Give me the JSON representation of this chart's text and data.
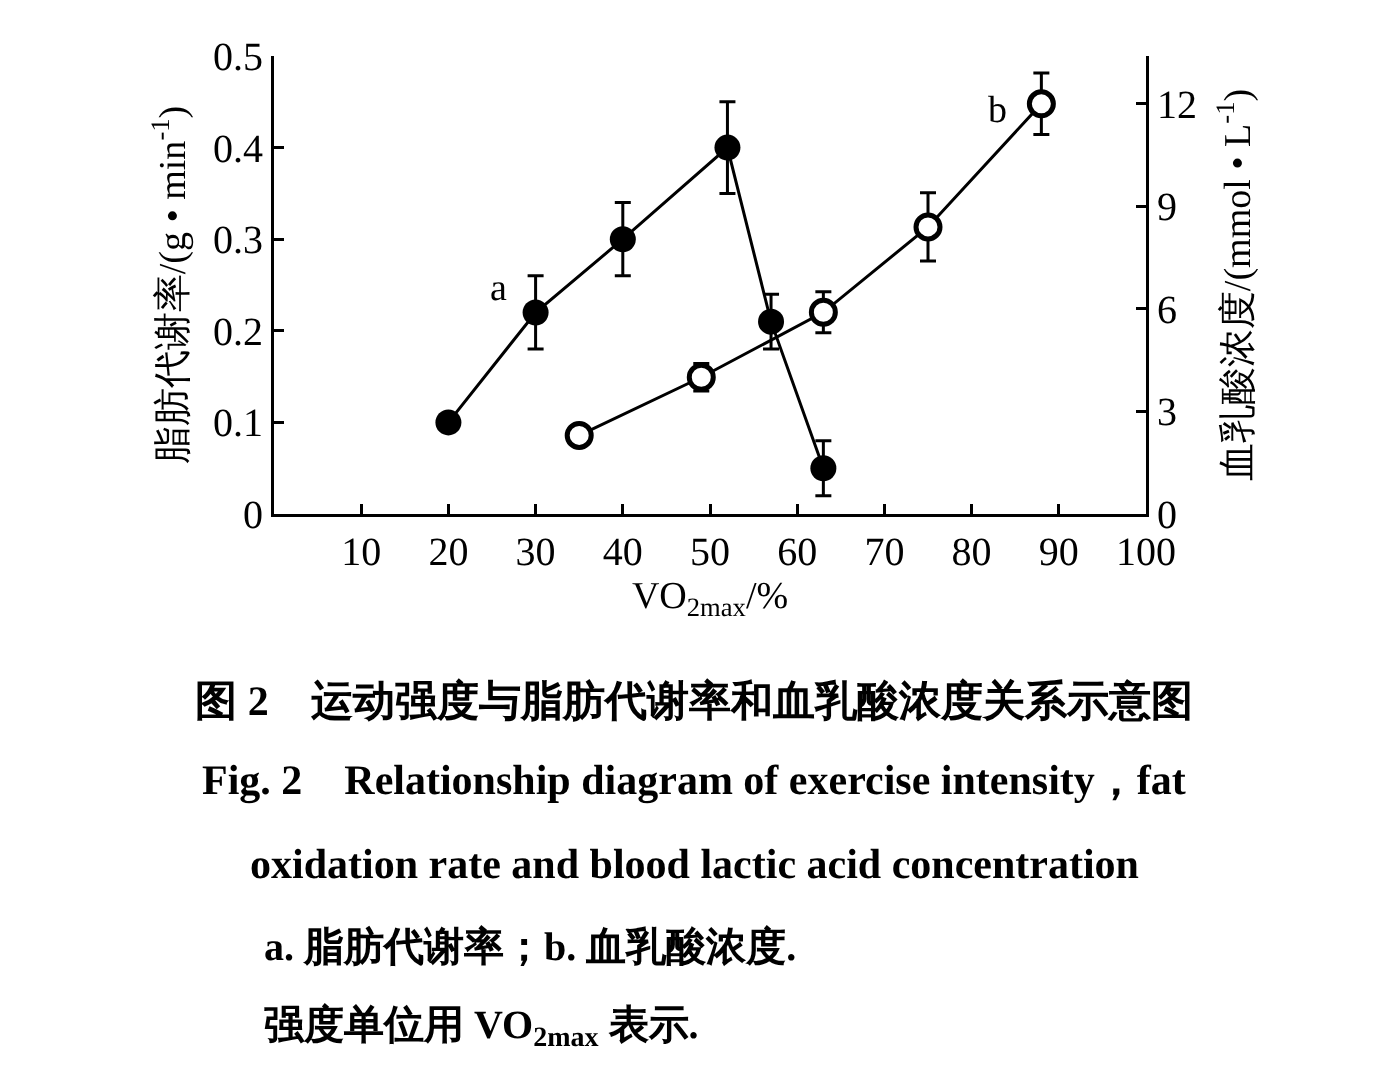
{
  "chart_data": {
    "type": "line",
    "title": "图 2　运动强度与脂肪代谢率和血乳酸浓度关系示意图",
    "subtitle": "Fig. 2　Relationship diagram of exercise intensity，fat oxidation rate and blood lactic acid concentration",
    "xlabel": "VO$_{2max}$/%",
    "ylabel": "脂肪代谢率/(g • min$^{-1}$)",
    "y2label": "血乳酸浓度/(mmol • L$^{-1}$)",
    "annotations": [
      "a. 脂肪代谢率；b. 血乳酸浓度.",
      "强度单位用 VO$_{2max}$ 表示."
    ],
    "xlim": [
      0,
      100
    ],
    "xticks": [
      10,
      20,
      30,
      40,
      50,
      60,
      70,
      80,
      90,
      100
    ],
    "ylim": [
      0,
      0.5
    ],
    "yticks": [
      0,
      0.1,
      0.2,
      0.3,
      0.4,
      0.5
    ],
    "y2lim": [
      0,
      13.4
    ],
    "y2ticks": [
      0,
      3,
      6,
      9,
      12
    ],
    "line_style": "solid",
    "series": [
      {
        "name": "a",
        "color": "#000000",
        "marker": "circle",
        "x": [
          20,
          30,
          40,
          52,
          57,
          63
        ],
        "values": [
          0.1,
          0.22,
          0.3,
          0.4,
          0.21,
          0.05
        ],
        "errors": [
          null,
          0.04,
          0.04,
          0.05,
          0.03,
          0.03
        ]
      },
      {
        "name": "b",
        "axis": "y2",
        "color": "#000000",
        "marker": "circle-open",
        "x": [
          35,
          49,
          63,
          75,
          88
        ],
        "values": [
          2.3,
          4.0,
          5.9,
          8.4,
          12.0
        ],
        "errors": [
          null,
          0.4,
          0.6,
          1.0,
          0.9
        ]
      }
    ]
  }
}
